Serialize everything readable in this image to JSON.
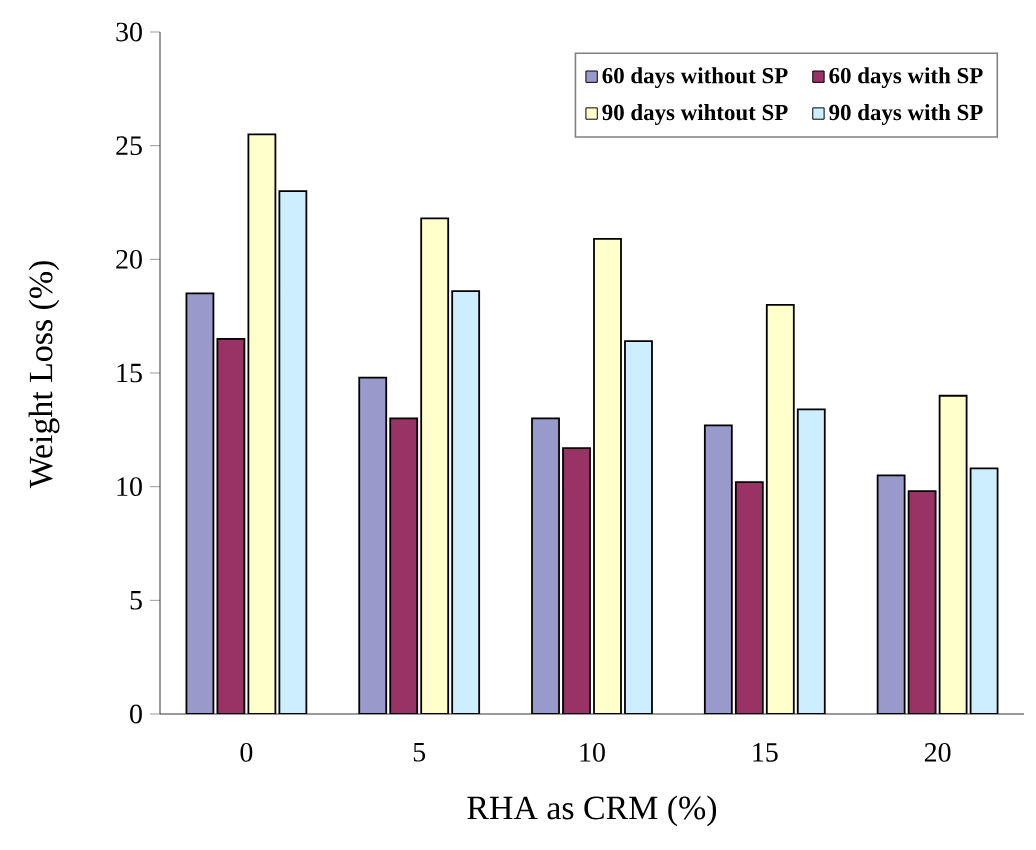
{
  "chart_data": {
    "type": "bar",
    "xlabel": "RHA as CRM (%)",
    "ylabel": "Weight Loss (%)",
    "categories": [
      "0",
      "5",
      "10",
      "15",
      "20"
    ],
    "series": [
      {
        "name": "60 days without SP",
        "color": "#9999cc",
        "values": [
          18.5,
          14.8,
          13.0,
          12.7,
          10.5
        ]
      },
      {
        "name": "60 days with SP",
        "color": "#993366",
        "values": [
          16.5,
          13.0,
          11.7,
          10.2,
          9.8
        ]
      },
      {
        "name": "90 days wihtout SP",
        "color": "#ffffcc",
        "values": [
          25.5,
          21.8,
          20.9,
          18.0,
          14.0
        ]
      },
      {
        "name": "90 days with SP",
        "color": "#cceeff",
        "values": [
          23.0,
          18.6,
          16.4,
          13.4,
          10.8
        ]
      }
    ],
    "ylim": [
      0,
      30
    ],
    "yticks": [
      0,
      5,
      10,
      15,
      20,
      25,
      30
    ],
    "grid": false,
    "legend": "top right"
  }
}
